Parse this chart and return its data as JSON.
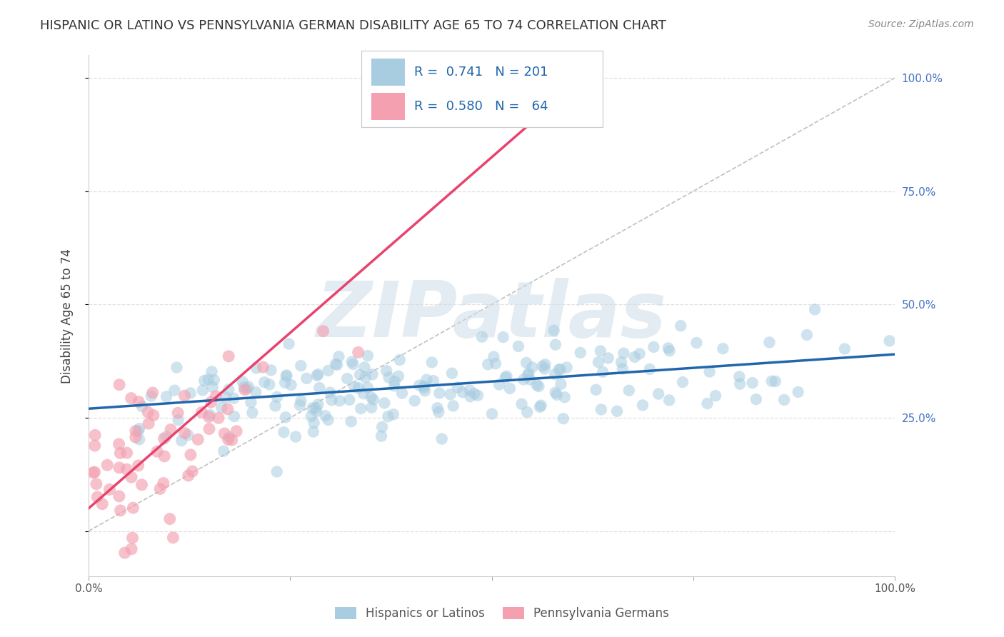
{
  "title": "HISPANIC OR LATINO VS PENNSYLVANIA GERMAN DISABILITY AGE 65 TO 74 CORRELATION CHART",
  "source": "Source: ZipAtlas.com",
  "ylabel": "Disability Age 65 to 74",
  "xlabel": "",
  "xlim": [
    0,
    1
  ],
  "ylim": [
    -0.1,
    1.05
  ],
  "ytick_positions": [
    0.0,
    0.25,
    0.5,
    0.75,
    1.0
  ],
  "ytick_labels_right": [
    "",
    "25.0%",
    "50.0%",
    "75.0%",
    "100.0%"
  ],
  "xtick_positions": [
    0.0,
    0.25,
    0.5,
    0.75,
    1.0
  ],
  "xtick_labels": [
    "0.0%",
    "",
    "",
    "",
    "100.0%"
  ],
  "blue_R": 0.741,
  "blue_N": 201,
  "pink_R": 0.58,
  "pink_N": 64,
  "blue_color": "#a8cce0",
  "pink_color": "#f4a0b0",
  "blue_line_color": "#2166ac",
  "pink_line_color": "#e8436e",
  "ref_line_color": "#c0c0c0",
  "grid_color": "#e0e0e0",
  "watermark_color": "#ccdde8",
  "watermark_text": "ZIPatlas",
  "blue_scatter_seed": 42,
  "pink_scatter_seed": 7,
  "blue_slope": 0.12,
  "blue_intercept": 0.27,
  "pink_slope": 1.55,
  "pink_intercept": 0.05,
  "background_color": "#ffffff",
  "title_fontsize": 13,
  "label_fontsize": 12,
  "tick_fontsize": 11,
  "legend_fontsize": 13
}
